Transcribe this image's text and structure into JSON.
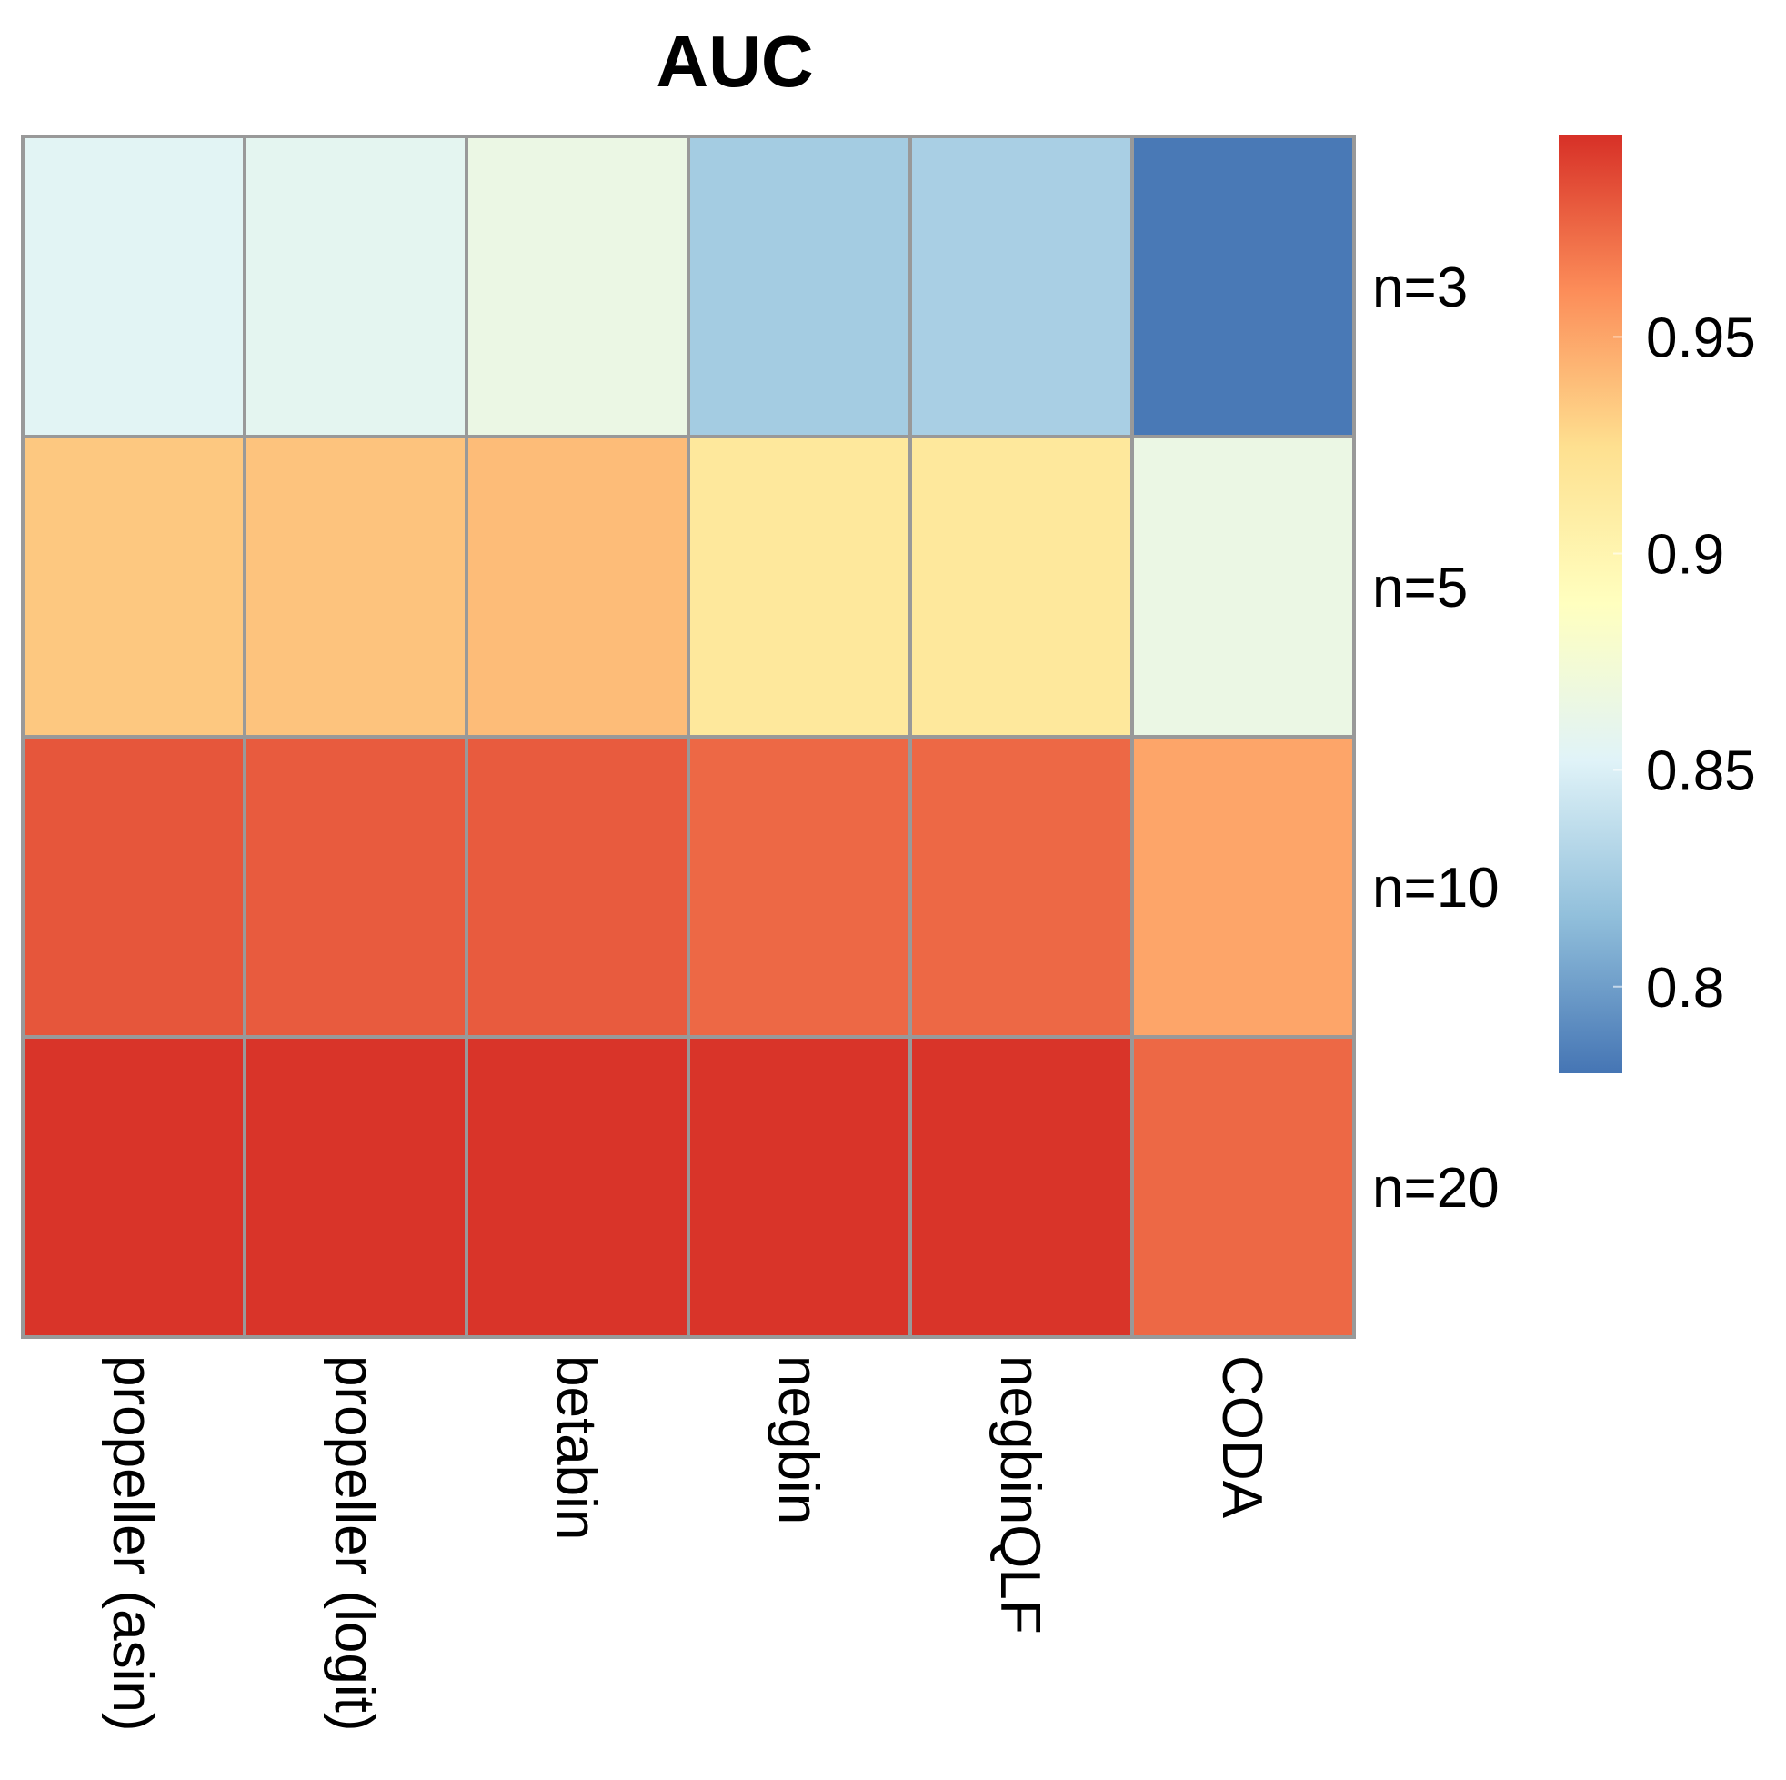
{
  "chart_data": {
    "type": "heatmap",
    "title": "AUC",
    "columns": [
      "propeller (asin)",
      "propeller (logit)",
      "betabin",
      "negbin",
      "negbinQLF",
      "CODA"
    ],
    "rows": [
      "n=3",
      "n=5",
      "n=10",
      "n=20"
    ],
    "values": [
      [
        0.855,
        0.857,
        0.865,
        0.825,
        0.827,
        0.782
      ],
      [
        0.935,
        0.937,
        0.94,
        0.915,
        0.915,
        0.865
      ],
      [
        0.982,
        0.98,
        0.98,
        0.975,
        0.975,
        0.95
      ],
      [
        0.995,
        0.995,
        0.995,
        0.995,
        0.995,
        0.975
      ]
    ],
    "colorbar": {
      "min": 0.78,
      "max": 0.9967,
      "ticks": [
        0.8,
        0.85,
        0.9,
        0.95
      ],
      "tick_labels": [
        "0.8",
        "0.85",
        "0.9",
        "0.95"
      ],
      "colors": [
        "#4575B4",
        "#91BFDB",
        "#E0F3F8",
        "#FFFFBF",
        "#FEE090",
        "#FC8D59",
        "#D73027"
      ]
    },
    "cell_border_color": "#999999",
    "grid": true,
    "legend_position": "right"
  }
}
